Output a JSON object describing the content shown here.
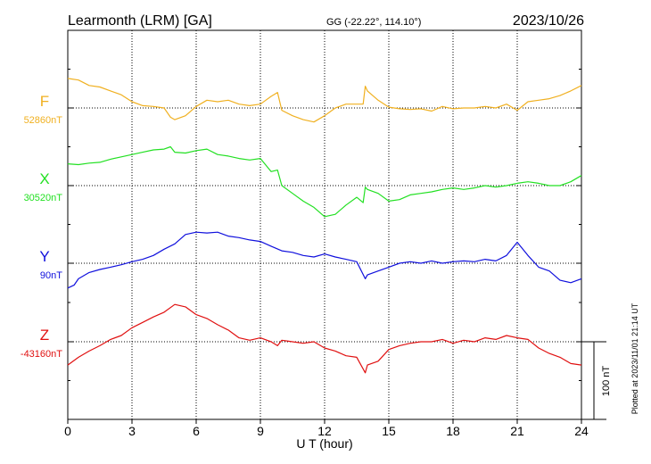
{
  "header": {
    "station": "Learmonth (LRM)  [GA]",
    "coords": "GG (-22.22°, 114.10°)",
    "date": "2023/10/26"
  },
  "footer": {
    "plotted": "Plotted at 2023/11/01 21:14 UT"
  },
  "colors": {
    "F": "#f0b020",
    "X": "#22e022",
    "Y": "#1010dd",
    "Z": "#e01010"
  },
  "chart_data": {
    "type": "line",
    "title": "Learmonth (LRM)  [GA]",
    "xlabel": "U T (hour)",
    "ylabel": "",
    "xlim": [
      0,
      24
    ],
    "x_ticks": [
      0,
      3,
      6,
      9,
      12,
      15,
      18,
      21,
      24
    ],
    "x_tick_labels": [
      "0",
      "3",
      "6",
      "9",
      "12",
      "15",
      "18",
      "21",
      "24"
    ],
    "scale_bar": "100 nT",
    "grid": true,
    "series": [
      {
        "name": "F",
        "baseline": "52860nT",
        "x": [
          0,
          0.5,
          1,
          1.5,
          2,
          2.5,
          3,
          3.5,
          4,
          4.5,
          4.8,
          5,
          5.5,
          6,
          6.5,
          7,
          7.5,
          8,
          8.5,
          9,
          9.5,
          9.8,
          10,
          10.5,
          11,
          11.5,
          12,
          12.5,
          13,
          13.5,
          13.8,
          13.9,
          14,
          14.5,
          15,
          15.5,
          16,
          16.5,
          17,
          17.5,
          18,
          18.5,
          19,
          19.5,
          20,
          20.5,
          21,
          21.5,
          22,
          22.5,
          23,
          23.5,
          24
        ],
        "values": [
          38,
          36,
          29,
          27,
          22,
          17,
          8,
          3,
          2,
          0,
          -12,
          -15,
          -10,
          2,
          10,
          8,
          10,
          5,
          3,
          5,
          15,
          20,
          -3,
          -10,
          -15,
          -18,
          -10,
          0,
          5,
          5,
          5,
          28,
          22,
          10,
          1,
          -1,
          -2,
          -1,
          -4,
          2,
          -1,
          0,
          0,
          2,
          0,
          5,
          -3,
          8,
          10,
          12,
          16,
          22,
          29
        ]
      },
      {
        "name": "X",
        "baseline": "30520nT",
        "x": [
          0,
          0.5,
          1,
          1.5,
          2,
          2.5,
          3,
          3.5,
          4,
          4.5,
          4.8,
          5,
          5.5,
          6,
          6.5,
          7,
          7.5,
          8,
          8.5,
          9,
          9.5,
          9.8,
          10,
          10.5,
          11,
          11.5,
          12,
          12.5,
          13,
          13.5,
          13.8,
          13.9,
          14,
          14.5,
          15,
          15.5,
          16,
          16.5,
          17,
          17.5,
          18,
          18.5,
          19,
          19.5,
          20,
          20.5,
          21,
          21.5,
          22,
          22.5,
          23,
          23.5,
          24
        ],
        "values": [
          28,
          27,
          29,
          30,
          34,
          37,
          40,
          43,
          46,
          47,
          50,
          43,
          42,
          45,
          47,
          40,
          38,
          35,
          33,
          35,
          18,
          20,
          0,
          -10,
          -20,
          -28,
          -40,
          -37,
          -25,
          -15,
          -22,
          -2,
          -5,
          -10,
          -20,
          -18,
          -12,
          -10,
          -8,
          -5,
          -3,
          -5,
          -3,
          0,
          -2,
          0,
          3,
          5,
          3,
          0,
          0,
          5,
          13
        ]
      },
      {
        "name": "Y",
        "baseline": "90nT",
        "x": [
          0,
          0.3,
          0.5,
          1,
          1.5,
          2,
          2.5,
          3,
          3.5,
          4,
          4.5,
          5,
          5.5,
          6,
          6.5,
          7,
          7.5,
          8,
          8.5,
          9,
          9.5,
          10,
          10.5,
          11,
          11.5,
          12,
          12.5,
          13,
          13.5,
          13.9,
          14,
          14.5,
          15,
          15.5,
          16,
          16.5,
          17,
          17.5,
          18,
          18.5,
          19,
          19.5,
          20,
          20.5,
          21,
          21.5,
          22,
          22.5,
          23,
          23.5,
          24
        ],
        "values": [
          -32,
          -28,
          -20,
          -12,
          -8,
          -5,
          -2,
          2,
          5,
          10,
          18,
          25,
          37,
          40,
          39,
          40,
          35,
          33,
          30,
          28,
          22,
          16,
          14,
          10,
          8,
          12,
          8,
          5,
          2,
          -20,
          -15,
          -10,
          -5,
          0,
          2,
          0,
          3,
          0,
          2,
          3,
          2,
          5,
          3,
          10,
          27,
          10,
          -5,
          -10,
          -22,
          -25,
          -20
        ]
      },
      {
        "name": "Z",
        "baseline": "-43160nT",
        "x": [
          0,
          0.5,
          1,
          1.5,
          2,
          2.5,
          3,
          3.5,
          4,
          4.5,
          5,
          5.5,
          6,
          6.5,
          7,
          7.5,
          8,
          8.5,
          9,
          9.5,
          9.8,
          10,
          10.5,
          11,
          11.5,
          12,
          12.5,
          13,
          13.5,
          13.9,
          14,
          14.5,
          15,
          15.5,
          16,
          16.5,
          17,
          17.5,
          18,
          18.5,
          19,
          19.5,
          20,
          20.5,
          21,
          21.5,
          22,
          22.5,
          23,
          23.5,
          24
        ],
        "values": [
          -30,
          -20,
          -12,
          -5,
          3,
          8,
          18,
          25,
          32,
          38,
          48,
          45,
          35,
          30,
          22,
          15,
          5,
          2,
          5,
          0,
          -5,
          2,
          0,
          -2,
          0,
          -8,
          -12,
          -18,
          -20,
          -40,
          -30,
          -25,
          -10,
          -5,
          -2,
          0,
          0,
          3,
          -2,
          2,
          0,
          5,
          3,
          8,
          5,
          3,
          -8,
          -15,
          -20,
          -28,
          -30
        ]
      }
    ]
  }
}
